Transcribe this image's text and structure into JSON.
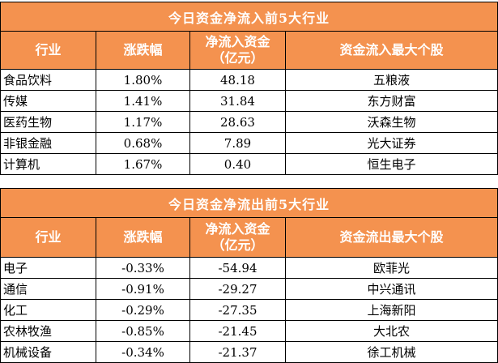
{
  "inflow": {
    "title": "今日资金净流入前5大行业",
    "headers": [
      "行业",
      "涨跌幅",
      "净流入资金\n（亿元）",
      "资金流入最大个股"
    ],
    "header_line1": "净流入资金",
    "header_line2": "（亿元）",
    "rows": [
      {
        "industry": "食品饮料",
        "change": "1.80%",
        "amount": "48.18",
        "stock": "五粮液"
      },
      {
        "industry": "传媒",
        "change": "1.41%",
        "amount": "31.84",
        "stock": "东方财富"
      },
      {
        "industry": "医药生物",
        "change": "1.17%",
        "amount": "28.63",
        "stock": "沃森生物"
      },
      {
        "industry": "非银金融",
        "change": "0.68%",
        "amount": "7.89",
        "stock": "光大证券"
      },
      {
        "industry": "计算机",
        "change": "1.67%",
        "amount": "0.40",
        "stock": "恒生电子"
      }
    ]
  },
  "outflow": {
    "title": "今日资金净流出前5大行业",
    "col1": "行业",
    "col2": "涨跌幅",
    "col3_line1": "净流入资金",
    "col3_line2": "（亿元）",
    "col4": "资金流出最大个股",
    "rows": [
      {
        "industry": "电子",
        "change": "-0.33%",
        "amount": "-54.94",
        "stock": "欧菲光"
      },
      {
        "industry": "通信",
        "change": "-0.91%",
        "amount": "-29.27",
        "stock": "中兴通讯"
      },
      {
        "industry": "化工",
        "change": "-0.29%",
        "amount": "-27.35",
        "stock": "上海新阳"
      },
      {
        "industry": "农林牧渔",
        "change": "-0.85%",
        "amount": "-21.45",
        "stock": "大北农"
      },
      {
        "industry": "机械设备",
        "change": "-0.34%",
        "amount": "-21.37",
        "stock": "徐工机械"
      }
    ]
  },
  "inflow_cols": {
    "col1": "行业",
    "col2": "涨跌幅",
    "col4": "资金流入最大个股"
  }
}
